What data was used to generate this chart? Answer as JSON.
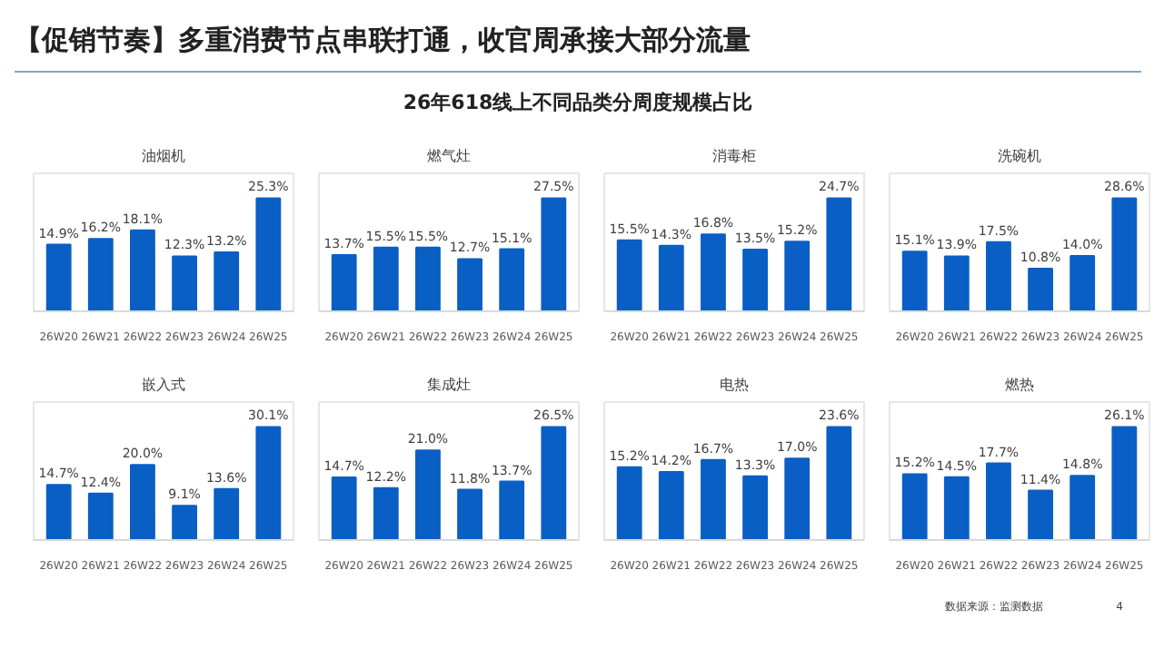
{
  "chart_data": [
    {
      "type": "bar",
      "title": "油烟机",
      "categories": [
        "26W20",
        "26W21",
        "26W22",
        "26W23",
        "26W24",
        "26W25"
      ],
      "values": [
        14.9,
        16.2,
        18.1,
        12.3,
        13.2,
        25.3
      ],
      "value_labels": [
        "14.9%",
        "16.2%",
        "18.1%",
        "12.3%",
        "13.2%",
        "25.3%"
      ],
      "color": "#0a5fc4",
      "annotations": [
        "【促销节奏】多重消费节点串联打通，收官周承接大部分流量",
        "26年618线上不同品类分周度规模占比",
        "数据来源：监测数据",
        "4"
      ]
    },
    {
      "type": "bar",
      "title": "燃气灶",
      "categories": [
        "26W20",
        "26W21",
        "26W22",
        "26W23",
        "26W24",
        "26W25"
      ],
      "values": [
        13.7,
        15.5,
        15.5,
        12.7,
        15.1,
        27.5
      ],
      "value_labels": [
        "13.7%",
        "15.5%",
        "15.5%",
        "12.7%",
        "15.1%",
        "27.5%"
      ],
      "color": "#0a5fc4"
    },
    {
      "type": "bar",
      "title": "消毒柜",
      "categories": [
        "26W20",
        "26W21",
        "26W22",
        "26W23",
        "26W24",
        "26W25"
      ],
      "values": [
        15.5,
        14.3,
        16.8,
        13.5,
        15.2,
        24.7
      ],
      "value_labels": [
        "15.5%",
        "14.3%",
        "16.8%",
        "13.5%",
        "15.2%",
        "24.7%"
      ],
      "color": "#0a5fc4"
    },
    {
      "type": "bar",
      "title": "洗碗机",
      "categories": [
        "26W20",
        "26W21",
        "26W22",
        "26W23",
        "26W24",
        "26W25"
      ],
      "values": [
        15.1,
        13.9,
        17.5,
        10.8,
        14.0,
        28.6
      ],
      "value_labels": [
        "15.1%",
        "13.9%",
        "17.5%",
        "10.8%",
        "14.0%",
        "28.6%"
      ],
      "color": "#0a5fc4"
    },
    {
      "type": "bar",
      "title": "嵌入式",
      "categories": [
        "26W20",
        "26W21",
        "26W22",
        "26W23",
        "26W24",
        "26W25"
      ],
      "values": [
        14.7,
        12.4,
        20.0,
        9.1,
        13.6,
        30.1
      ],
      "value_labels": [
        "14.7%",
        "12.4%",
        "20.0%",
        "9.1%",
        "13.6%",
        "30.1%"
      ],
      "color": "#0a5fc4"
    },
    {
      "type": "bar",
      "title": "集成灶",
      "categories": [
        "26W20",
        "26W21",
        "26W22",
        "26W23",
        "26W24",
        "26W25"
      ],
      "values": [
        14.7,
        12.2,
        21.0,
        11.8,
        13.7,
        26.5
      ],
      "value_labels": [
        "14.7%",
        "12.2%",
        "21.0%",
        "11.8%",
        "13.7%",
        "26.5%"
      ],
      "color": "#0a5fc4"
    },
    {
      "type": "bar",
      "title": "电热",
      "categories": [
        "26W20",
        "26W21",
        "26W22",
        "26W23",
        "26W24",
        "26W25"
      ],
      "values": [
        15.2,
        14.2,
        16.7,
        13.3,
        17.0,
        23.6
      ],
      "value_labels": [
        "15.2%",
        "14.2%",
        "16.7%",
        "13.3%",
        "17.0%",
        "23.6%"
      ],
      "color": "#0a5fc4"
    },
    {
      "type": "bar",
      "title": "燃热",
      "categories": [
        "26W20",
        "26W21",
        "26W22",
        "26W23",
        "26W24",
        "26W25"
      ],
      "values": [
        15.2,
        14.5,
        17.7,
        11.4,
        14.8,
        26.1
      ],
      "value_labels": [
        "15.2%",
        "14.5%",
        "17.7%",
        "11.4%",
        "14.8%",
        "26.1%"
      ],
      "color": "#0a5fc4"
    }
  ]
}
